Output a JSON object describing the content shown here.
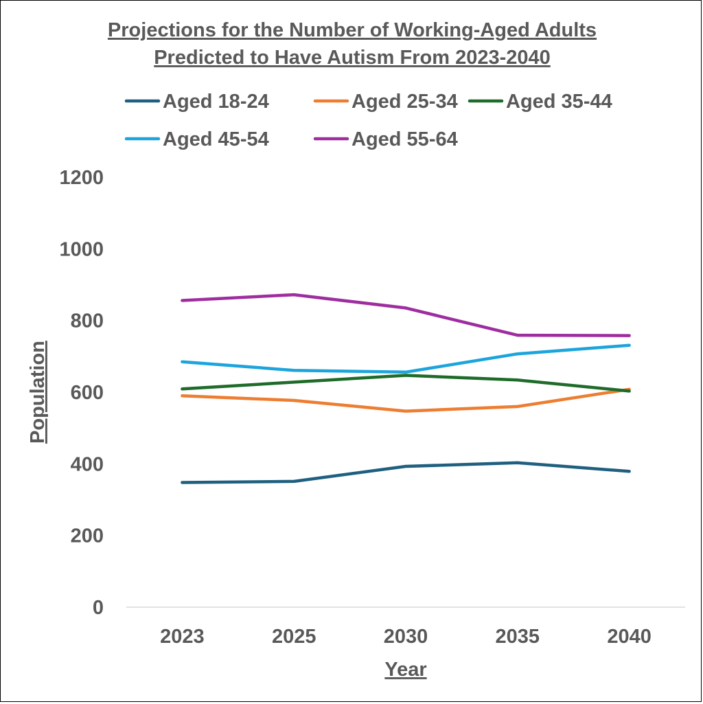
{
  "chart_data": {
    "type": "line",
    "title": "Projections for the Number of Working-Aged Adults Predicted to Have Autism From 2023-2040",
    "title_lines": [
      "Projections for the Number of Working-Aged Adults",
      "Predicted to Have Autism From 2023-2040"
    ],
    "xlabel": "Year",
    "ylabel": "Population",
    "categories": [
      "2023",
      "2025",
      "2030",
      "2035",
      "2040"
    ],
    "ylim": [
      0,
      1200
    ],
    "yticks": [
      0,
      200,
      400,
      600,
      800,
      1000,
      1200
    ],
    "grid": false,
    "legend_position": "top",
    "series": [
      {
        "name": "Aged 18-24",
        "color": "#1f5f7f",
        "values": [
          348,
          351,
          393,
          403,
          379
        ]
      },
      {
        "name": "Aged 25-34",
        "color": "#ed7d31",
        "values": [
          590,
          577,
          547,
          560,
          608
        ]
      },
      {
        "name": "Aged 35-44",
        "color": "#1e6b2a",
        "values": [
          609,
          628,
          647,
          634,
          603
        ]
      },
      {
        "name": "Aged 45-54",
        "color": "#1ca4dc",
        "values": [
          685,
          661,
          656,
          707,
          731
        ]
      },
      {
        "name": "Aged 55-64",
        "color": "#9e2ea0",
        "values": [
          856,
          872,
          835,
          759,
          758
        ]
      }
    ]
  }
}
